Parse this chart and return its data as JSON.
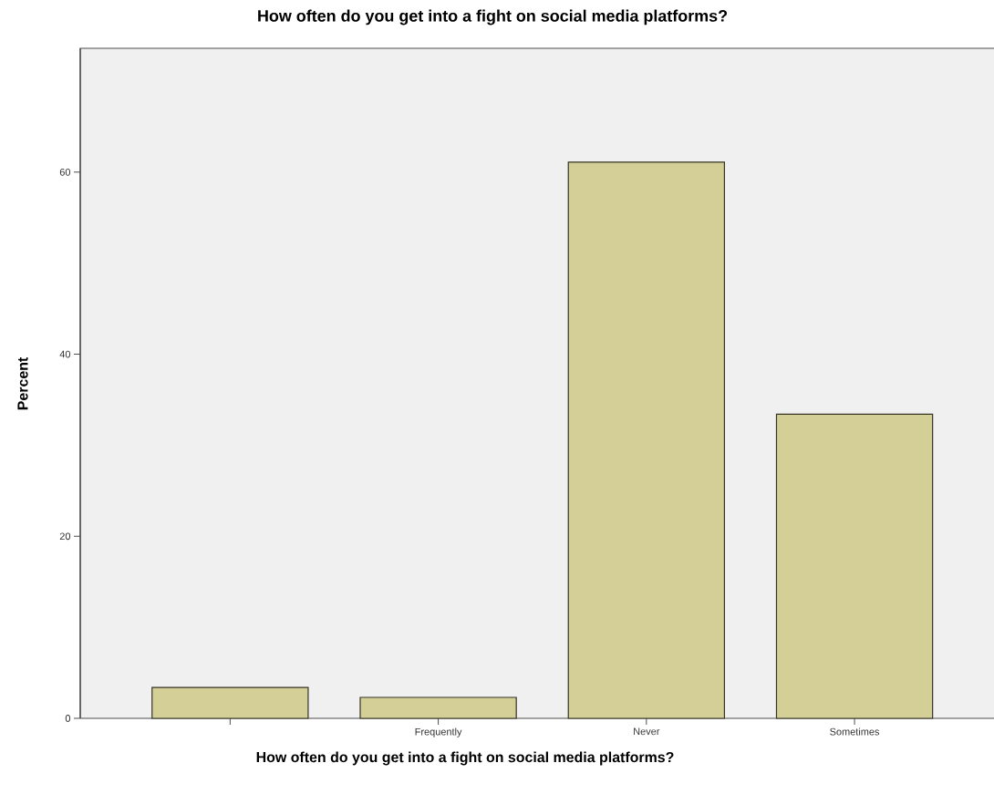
{
  "chart_data": {
    "type": "bar",
    "title": "How often do you get into a fight on social media platforms?",
    "xlabel": "How often do you get into a fight on social media platforms?",
    "ylabel": "Percent",
    "categories": [
      null,
      "Frequently",
      "Never",
      "Sometimes"
    ],
    "values": [
      3.4,
      2.3,
      61.1,
      33.4
    ],
    "color": "#d3cf96",
    "ylim": [
      0,
      73.6
    ],
    "yticks": [
      0,
      20,
      40,
      60
    ],
    "grid": false
  }
}
